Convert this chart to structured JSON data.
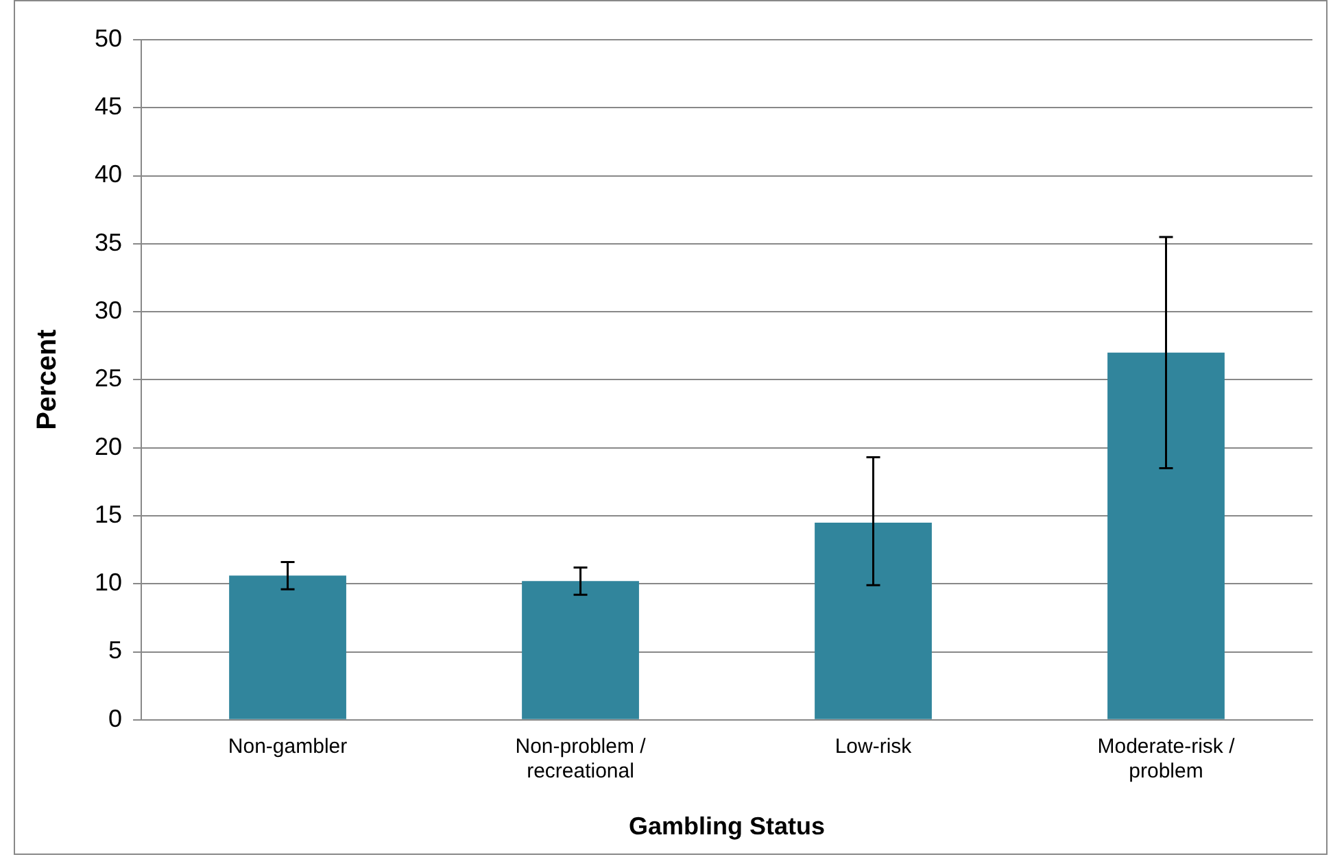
{
  "chart_data": {
    "type": "bar",
    "xlabel": "Gambling Status",
    "ylabel": "Percent",
    "categories": [
      "Non-gambler",
      "Non-problem / recreational",
      "Low-risk",
      "Moderate-risk / problem"
    ],
    "values": [
      10.6,
      10.2,
      14.5,
      27
    ],
    "errors": [
      [
        9.6,
        11.6
      ],
      [
        9.2,
        11.2
      ],
      [
        9.9,
        19.3
      ],
      [
        18.5,
        35.5
      ]
    ],
    "color": "#31859c",
    "ylim": [
      0,
      50
    ],
    "yticks": [
      0,
      5,
      10,
      15,
      20,
      25,
      30,
      35,
      40,
      45,
      50
    ],
    "grid": "y",
    "legend": false
  }
}
